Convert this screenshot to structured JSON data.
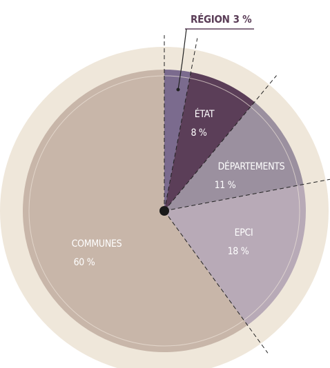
{
  "chart_data": {
    "type": "pie",
    "categories": [
      "RÉGION",
      "ÉTAT",
      "DÉPARTEMENTS",
      "EPCI",
      "COMMUNES"
    ],
    "values": [
      3,
      8,
      11,
      18,
      60
    ],
    "value_labels": [
      "3 %",
      "8 %",
      "11 %",
      "18 %",
      "60 %"
    ],
    "colors": [
      "#7b6b8e",
      "#5b3e58",
      "#9b909f",
      "#b8aab7",
      "#c8b6a9"
    ]
  }
}
